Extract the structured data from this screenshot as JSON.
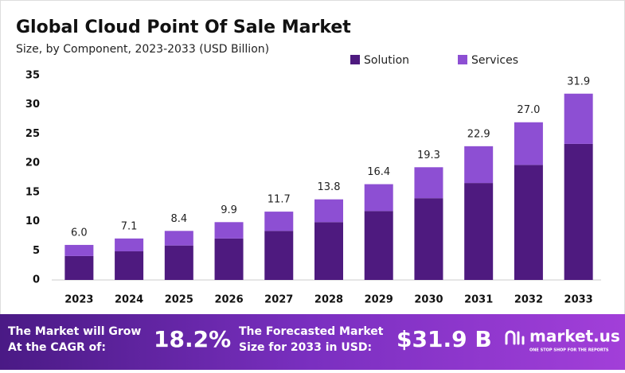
{
  "chart_data": {
    "type": "stacked-bar",
    "title": "Global Cloud Point Of Sale Market",
    "subtitle": "Size, by Component, 2023-2033 (USD Billion)",
    "categories": [
      "2023",
      "2024",
      "2025",
      "2026",
      "2027",
      "2028",
      "2029",
      "2030",
      "2031",
      "2032",
      "2033"
    ],
    "series": [
      {
        "name": "Solution",
        "color": "#4e1a7f",
        "values": [
          4.1,
          4.9,
          5.9,
          7.1,
          8.4,
          9.9,
          11.8,
          14.0,
          16.6,
          19.7,
          23.3
        ]
      },
      {
        "name": "Services",
        "color": "#8d4fd3",
        "values": [
          1.9,
          2.2,
          2.5,
          2.8,
          3.3,
          3.9,
          4.6,
          5.3,
          6.3,
          7.3,
          8.6
        ]
      }
    ],
    "totals": [
      6.0,
      7.1,
      8.4,
      9.9,
      11.7,
      13.8,
      16.4,
      19.3,
      22.9,
      27.0,
      31.9
    ],
    "total_labels": [
      "6.0",
      "7.1",
      "8.4",
      "9.9",
      "11.7",
      "13.8",
      "16.4",
      "19.3",
      "22.9",
      "27.0",
      "31.9"
    ],
    "ylim": [
      0,
      35
    ],
    "yticks": [
      0,
      5,
      10,
      15,
      20,
      25,
      30,
      35
    ],
    "grid": false
  },
  "footer": {
    "cagr_text": [
      "The Market will Grow",
      "At the CAGR of:"
    ],
    "cagr": "18.2%",
    "forecast_text": [
      "The Forecasted Market",
      "Size for 2033 in USD:"
    ],
    "forecast": "$31.9 B",
    "brand": "market.us",
    "tagline": "ONE STOP SHOP FOR THE REPORTS"
  }
}
